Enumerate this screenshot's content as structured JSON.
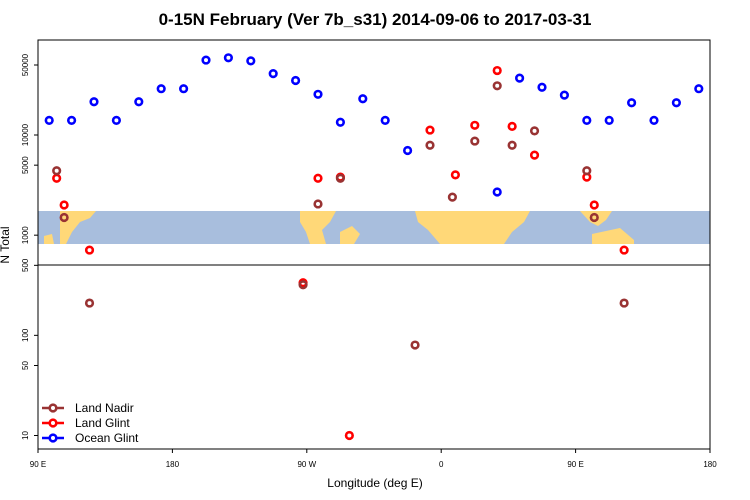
{
  "chart_data": {
    "type": "scatter",
    "title": "0-15N February (Ver 7b_s31)   2014-09-06 to 2017-03-31",
    "xlabel": "Longitude (deg E)",
    "ylabel": "N Total",
    "x_scale": "linear",
    "y_scale": "log",
    "xlim": [
      90,
      540
    ],
    "ylim": [
      7.5,
      90000
    ],
    "x_ticks": [
      {
        "value": 90,
        "label": "90 E"
      },
      {
        "value": 180,
        "label": "180"
      },
      {
        "value": 270,
        "label": "90 W"
      },
      {
        "value": 360,
        "label": "0"
      },
      {
        "value": 450,
        "label": "90 E"
      },
      {
        "value": 540,
        "label": "180"
      }
    ],
    "y_ticks": [
      {
        "value": 10,
        "label": "10"
      },
      {
        "value": 50,
        "label": "50"
      },
      {
        "value": 100,
        "label": "100"
      },
      {
        "value": 500,
        "label": "500"
      },
      {
        "value": 1000,
        "label": "1000"
      },
      {
        "value": 5000,
        "label": "5000"
      },
      {
        "value": 10000,
        "label": "10000"
      },
      {
        "value": 50000,
        "label": "50000"
      }
    ],
    "grid": false,
    "legend_position": "bottom-left",
    "background_map_band": {
      "y_range": [
        750,
        2000
      ],
      "ocean_color": "#a8bedd",
      "land_color": "#ffd878"
    },
    "series": [
      {
        "name": "Ocean Glint",
        "color": "#0000ff",
        "points": [
          {
            "x": 97.5,
            "y": 14000
          },
          {
            "x": 112.5,
            "y": 14000
          },
          {
            "x": 127.5,
            "y": 21500
          },
          {
            "x": 142.5,
            "y": 14000
          },
          {
            "x": 157.5,
            "y": 21500
          },
          {
            "x": 172.5,
            "y": 29000
          },
          {
            "x": 187.5,
            "y": 29000
          },
          {
            "x": 202.5,
            "y": 56000
          },
          {
            "x": 217.5,
            "y": 59000
          },
          {
            "x": 232.5,
            "y": 55000
          },
          {
            "x": 247.5,
            "y": 41000
          },
          {
            "x": 262.5,
            "y": 35000
          },
          {
            "x": 277.5,
            "y": 25500
          },
          {
            "x": 292.5,
            "y": 13400
          },
          {
            "x": 307.5,
            "y": 23000
          },
          {
            "x": 322.5,
            "y": 14000
          },
          {
            "x": 337.5,
            "y": 7000
          },
          {
            "x": 397.5,
            "y": 2700
          },
          {
            "x": 412.5,
            "y": 37000
          },
          {
            "x": 427.5,
            "y": 30000
          },
          {
            "x": 442.5,
            "y": 25000
          },
          {
            "x": 457.5,
            "y": 14000
          },
          {
            "x": 472.5,
            "y": 14000
          },
          {
            "x": 487.5,
            "y": 21000
          },
          {
            "x": 502.5,
            "y": 14000
          },
          {
            "x": 517.5,
            "y": 21000
          },
          {
            "x": 532.5,
            "y": 29000
          }
        ]
      },
      {
        "name": "Land Glint",
        "color": "#ff0000",
        "points": [
          {
            "x": 102.5,
            "y": 3700
          },
          {
            "x": 107.5,
            "y": 2000
          },
          {
            "x": 124.5,
            "y": 710
          },
          {
            "x": 267.5,
            "y": 335
          },
          {
            "x": 277.5,
            "y": 3700
          },
          {
            "x": 292.5,
            "y": 3800
          },
          {
            "x": 298.5,
            "y": 10
          },
          {
            "x": 352.5,
            "y": 11200
          },
          {
            "x": 369.5,
            "y": 4000
          },
          {
            "x": 382.5,
            "y": 12500
          },
          {
            "x": 397.5,
            "y": 44000
          },
          {
            "x": 407.5,
            "y": 12200
          },
          {
            "x": 422.5,
            "y": 6300
          },
          {
            "x": 457.5,
            "y": 3800
          },
          {
            "x": 462.5,
            "y": 2000
          },
          {
            "x": 482.5,
            "y": 710
          }
        ]
      },
      {
        "name": "Land Nadir",
        "color": "#993333",
        "points": [
          {
            "x": 102.5,
            "y": 4400
          },
          {
            "x": 107.5,
            "y": 1500
          },
          {
            "x": 124.5,
            "y": 210
          },
          {
            "x": 267.5,
            "y": 320
          },
          {
            "x": 277.5,
            "y": 2050
          },
          {
            "x": 292.5,
            "y": 3700
          },
          {
            "x": 342.5,
            "y": 80
          },
          {
            "x": 352.5,
            "y": 7900
          },
          {
            "x": 367.5,
            "y": 2400
          },
          {
            "x": 382.5,
            "y": 8700
          },
          {
            "x": 397.5,
            "y": 31000
          },
          {
            "x": 407.5,
            "y": 7900
          },
          {
            "x": 422.5,
            "y": 11000
          },
          {
            "x": 457.5,
            "y": 4400
          },
          {
            "x": 462.5,
            "y": 1500
          },
          {
            "x": 482.5,
            "y": 210
          }
        ]
      }
    ],
    "legend": [
      {
        "name": "Land Nadir",
        "color": "#993333"
      },
      {
        "name": "Land Glint",
        "color": "#ff0000"
      },
      {
        "name": "Ocean Glint",
        "color": "#0000ff"
      }
    ]
  }
}
